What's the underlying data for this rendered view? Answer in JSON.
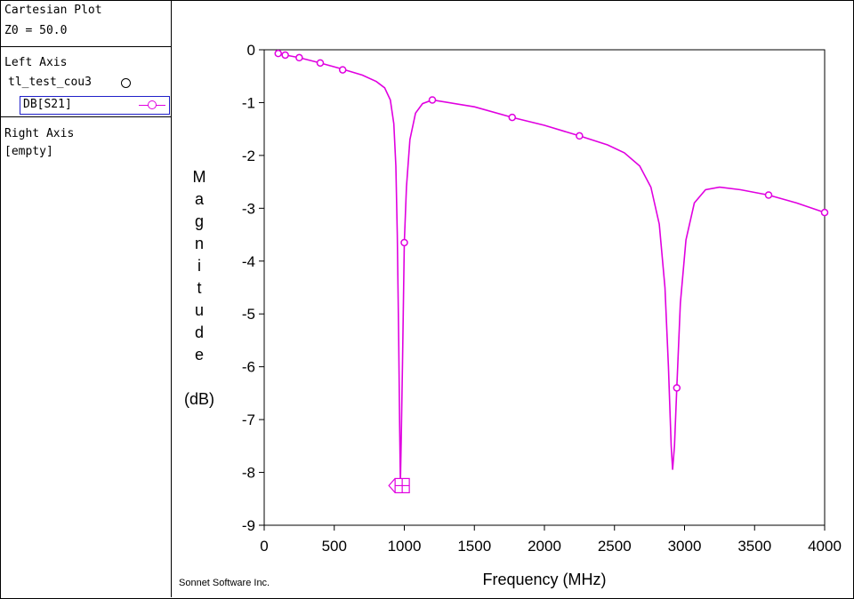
{
  "left_panel": {
    "title": "Cartesian Plot",
    "z0": "Z0 = 50.0",
    "left_axis_label": "Left Axis",
    "project_name": "tl_test_cou3",
    "trace_name": "DB[S21]",
    "right_axis_label": "Right Axis",
    "right_axis_value": "[empty]"
  },
  "footer": "Sonnet Software Inc.",
  "colors": {
    "trace": "#e000e0",
    "selection_box": "#1f1fc8"
  },
  "icons": [
    "circle-icon",
    "trace-marker-icon"
  ],
  "chart_data": {
    "type": "line",
    "xlabel": "Frequency (MHz)",
    "ylabel_letters": [
      "M",
      "a",
      "g",
      "n",
      "i",
      "t",
      "u",
      "d",
      "e"
    ],
    "ylabel_unit": "(dB)",
    "xlim": [
      0,
      4000
    ],
    "ylim": [
      -9,
      0
    ],
    "x_ticks": [
      "0",
      "500",
      "1000",
      "1500",
      "2000",
      "2500",
      "3000",
      "3500",
      "4000"
    ],
    "y_ticks": [
      "0",
      "-1",
      "-2",
      "-3",
      "-4",
      "-5",
      "-6",
      "-7",
      "-8",
      "-9"
    ],
    "grid": false,
    "series": [
      {
        "curve": [
          [
            100,
            -0.07
          ],
          [
            150,
            -0.1
          ],
          [
            250,
            -0.15
          ],
          [
            400,
            -0.25
          ],
          [
            550,
            -0.36
          ],
          [
            700,
            -0.48
          ],
          [
            800,
            -0.6
          ],
          [
            860,
            -0.72
          ],
          [
            900,
            -0.95
          ],
          [
            925,
            -1.4
          ],
          [
            940,
            -2.2
          ],
          [
            950,
            -3.5
          ],
          [
            960,
            -5.5
          ],
          [
            967,
            -7.2
          ],
          [
            972,
            -8.2
          ],
          [
            978,
            -7.4
          ],
          [
            987,
            -5.9
          ],
          [
            1000,
            -3.65
          ],
          [
            1015,
            -2.6
          ],
          [
            1040,
            -1.7
          ],
          [
            1080,
            -1.2
          ],
          [
            1130,
            -1.02
          ],
          [
            1200,
            -0.95
          ],
          [
            1500,
            -1.08
          ],
          [
            1770,
            -1.28
          ],
          [
            2000,
            -1.43
          ],
          [
            2250,
            -1.63
          ],
          [
            2450,
            -1.8
          ],
          [
            2570,
            -1.95
          ],
          [
            2680,
            -2.2
          ],
          [
            2760,
            -2.6
          ],
          [
            2820,
            -3.3
          ],
          [
            2860,
            -4.5
          ],
          [
            2885,
            -6.0
          ],
          [
            2905,
            -7.5
          ],
          [
            2915,
            -7.95
          ],
          [
            2928,
            -7.5
          ],
          [
            2945,
            -6.4
          ],
          [
            2970,
            -4.8
          ],
          [
            3010,
            -3.6
          ],
          [
            3070,
            -2.9
          ],
          [
            3150,
            -2.65
          ],
          [
            3250,
            -2.6
          ],
          [
            3400,
            -2.65
          ],
          [
            3600,
            -2.75
          ],
          [
            3800,
            -2.9
          ],
          [
            4000,
            -3.08
          ]
        ],
        "markers": [
          [
            100,
            -0.07
          ],
          [
            150,
            -0.1
          ],
          [
            250,
            -0.15
          ],
          [
            400,
            -0.25
          ],
          [
            560,
            -0.38
          ],
          [
            1000,
            -3.65
          ],
          [
            1200,
            -0.95
          ],
          [
            1770,
            -1.28
          ],
          [
            2250,
            -1.63
          ],
          [
            2945,
            -6.4
          ],
          [
            3600,
            -2.75
          ],
          [
            4000,
            -3.08
          ]
        ],
        "min_marker": [
          985,
          -8.25
        ]
      }
    ]
  }
}
